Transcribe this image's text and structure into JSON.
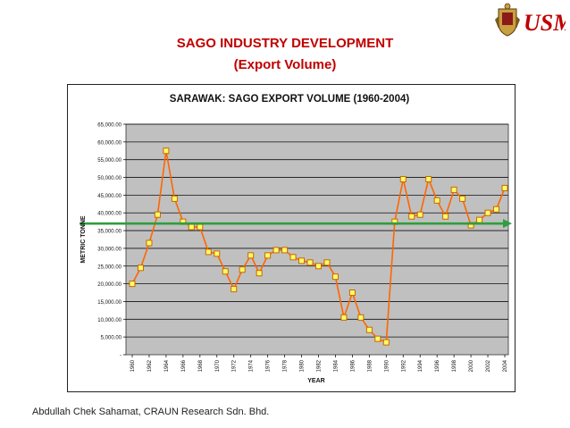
{
  "slide": {
    "title_line1": "SAGO INDUSTRY DEVELOPMENT",
    "title_line2": "(Export Volume)",
    "footer": "Abdullah Chek Sahamat, CRAUN Research Sdn. Bhd.",
    "logo_text": "USM"
  },
  "colors": {
    "title": "#c00000",
    "plot_bg": "#c0c0c0",
    "line": "#ff6600",
    "marker_fill": "#ffff66",
    "marker_stroke": "#cc6600",
    "reference_line": "#2e9e3e",
    "logo": "#c00000"
  },
  "chart_data": {
    "type": "line",
    "title": "SARAWAK: SAGO EXPORT VOLUME (1960-2004)",
    "xlabel": "YEAR",
    "ylabel": "METRIC TONNE",
    "x": [
      1960,
      1961,
      1962,
      1963,
      1964,
      1965,
      1966,
      1967,
      1968,
      1969,
      1970,
      1971,
      1972,
      1973,
      1974,
      1975,
      1976,
      1977,
      1978,
      1979,
      1980,
      1981,
      1982,
      1983,
      1984,
      1985,
      1986,
      1987,
      1988,
      1989,
      1990,
      1991,
      1992,
      1993,
      1994,
      1995,
      1996,
      1997,
      1998,
      1999,
      2000,
      2001,
      2002,
      2003,
      2004
    ],
    "values": [
      20000,
      24500,
      31500,
      39500,
      57500,
      44000,
      37500,
      36000,
      36000,
      29000,
      28500,
      23500,
      18500,
      24000,
      28000,
      23000,
      28000,
      29500,
      29500,
      27500,
      26500,
      26000,
      25000,
      26000,
      22000,
      10500,
      17500,
      10500,
      7000,
      4500,
      3500,
      37500,
      49500,
      39000,
      39500,
      49500,
      43500,
      39000,
      46500,
      44000,
      36500,
      38000,
      40000,
      41000,
      47000
    ],
    "ylim": [
      0,
      65000
    ],
    "yticks": [
      0,
      5000,
      10000,
      15000,
      20000,
      25000,
      30000,
      35000,
      40000,
      45000,
      50000,
      55000,
      60000,
      65000
    ],
    "ytick_labels": [
      "-",
      "5,000.00",
      "10,000.00",
      "15,000.00",
      "20,000.00",
      "25,000.00",
      "30,000.00",
      "35,000.00",
      "40,000.00",
      "45,000.00",
      "50,000.00",
      "55,000.00",
      "60,000.00",
      "65,000.00"
    ],
    "xtick_labels": [
      "1960",
      "1962",
      "1964",
      "1966",
      "1968",
      "1970",
      "1972",
      "1974",
      "1976",
      "1978",
      "1980",
      "1982",
      "1984",
      "1986",
      "1988",
      "1990",
      "1992",
      "1994",
      "1996",
      "1998",
      "2000",
      "2002",
      "2004"
    ],
    "reference_line": {
      "value": 37000,
      "direction": "arrow-right"
    },
    "grid": true,
    "legend": "none"
  }
}
